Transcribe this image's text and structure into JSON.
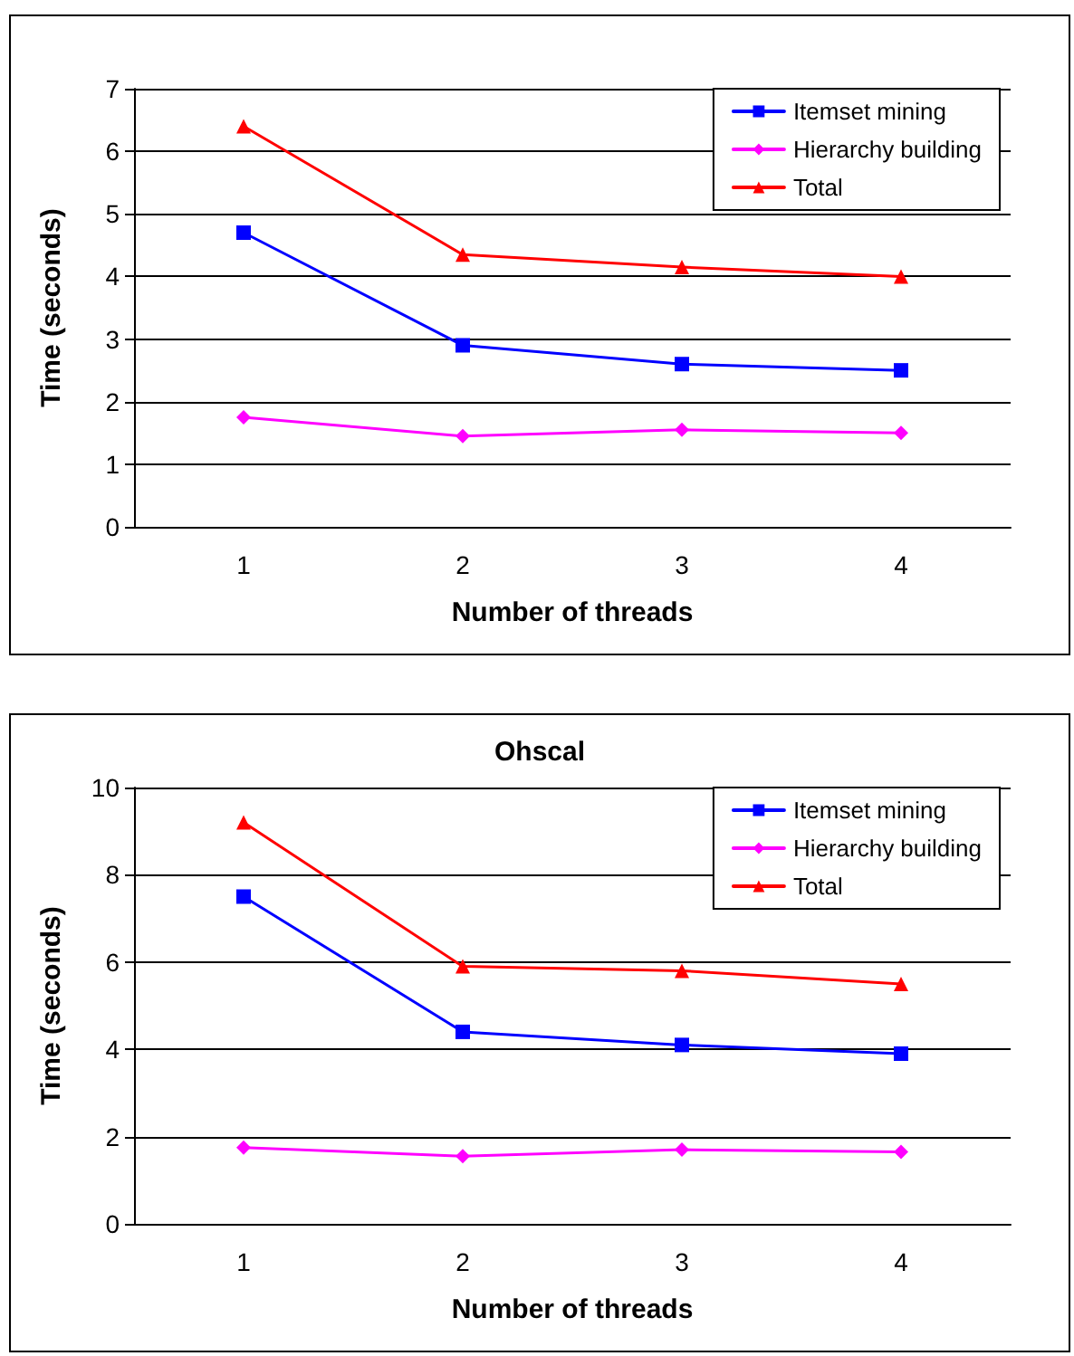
{
  "chart_data": [
    {
      "type": "line",
      "xlabel": "Number of threads",
      "ylabel": "Time (seconds)",
      "categories": [
        "1",
        "2",
        "3",
        "4"
      ],
      "ylim": [
        0,
        7
      ],
      "yticks": [
        0,
        1,
        2,
        3,
        4,
        5,
        6,
        7
      ],
      "grid": "y",
      "legend": "top right",
      "series": [
        {
          "name": "Itemset mining",
          "color": "#0000ff",
          "marker": "square",
          "values": [
            4.7,
            2.9,
            2.6,
            2.5
          ]
        },
        {
          "name": "Hierarchy building",
          "color": "#ff00ff",
          "marker": "diamond",
          "values": [
            1.75,
            1.45,
            1.55,
            1.5
          ]
        },
        {
          "name": "Total",
          "color": "#ff0000",
          "marker": "triangle",
          "values": [
            6.4,
            4.35,
            4.15,
            4.0
          ]
        }
      ]
    },
    {
      "type": "line",
      "title": "Ohscal",
      "xlabel": "Number of threads",
      "ylabel": "Time (seconds)",
      "categories": [
        "1",
        "2",
        "3",
        "4"
      ],
      "ylim": [
        0,
        10
      ],
      "yticks": [
        0,
        2,
        4,
        6,
        8,
        10
      ],
      "grid": "y",
      "legend": "top right",
      "series": [
        {
          "name": "Itemset mining",
          "color": "#0000ff",
          "marker": "square",
          "values": [
            7.5,
            4.4,
            4.1,
            3.9
          ]
        },
        {
          "name": "Hierarchy building",
          "color": "#ff00ff",
          "marker": "diamond",
          "values": [
            1.75,
            1.55,
            1.7,
            1.65
          ]
        },
        {
          "name": "Total",
          "color": "#ff0000",
          "marker": "triangle",
          "values": [
            9.2,
            5.9,
            5.8,
            5.5
          ]
        }
      ]
    }
  ]
}
